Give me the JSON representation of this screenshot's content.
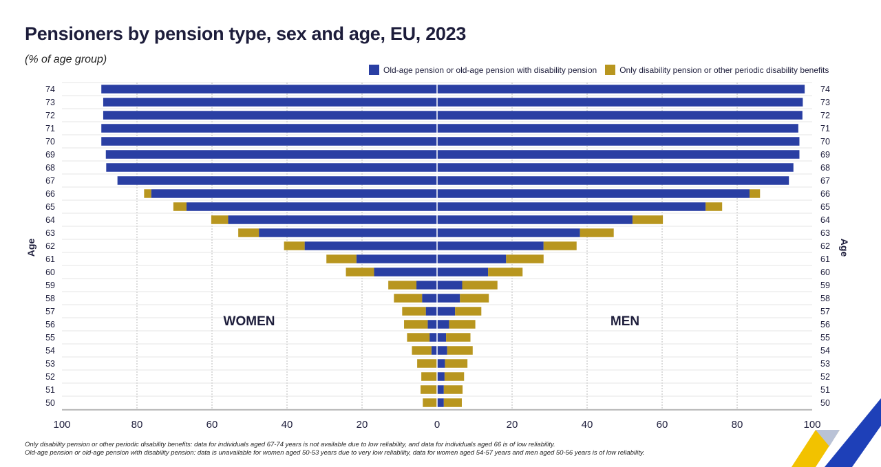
{
  "chart_data": {
    "type": "bar",
    "orientation": "horizontal-population-pyramid",
    "title": "Pensioners by pension type, sex and age, EU, 2023",
    "subtitle": "(% of age group)",
    "ylabel": "Age",
    "xlim": [
      0,
      100
    ],
    "x_ticks": [
      "100",
      "80",
      "60",
      "40",
      "20",
      "0",
      "20",
      "40",
      "60",
      "80",
      "100"
    ],
    "left_label": "WOMEN",
    "right_label": "MEN",
    "categories": [
      "74",
      "73",
      "72",
      "71",
      "70",
      "69",
      "68",
      "67",
      "66",
      "65",
      "64",
      "63",
      "62",
      "61",
      "60",
      "59",
      "58",
      "57",
      "56",
      "55",
      "54",
      "53",
      "52",
      "51",
      "50"
    ],
    "legend": [
      {
        "name": "Old-age pension or old-age pension with disability pension",
        "color": "#2a3fa3"
      },
      {
        "name": "Only disability pension or other periodic disability benefits",
        "color": "#b8961f"
      }
    ],
    "series": [
      {
        "name": "Women - Old-age pension or old-age pension with disability pension",
        "values": [
          89.5,
          89,
          89,
          89.5,
          89.5,
          88.3,
          88.2,
          85.2,
          76.2,
          66.8,
          55.7,
          47.5,
          35.3,
          21.5,
          16.8,
          5.5,
          4,
          3,
          2.5,
          2,
          1.5,
          0,
          0,
          0,
          0
        ]
      },
      {
        "name": "Women - Only disability pension or other periodic disability benefits",
        "values": [
          0,
          0,
          0,
          0,
          0,
          0,
          0,
          0,
          1.9,
          3.5,
          4.5,
          5.5,
          5.5,
          8,
          7.5,
          7.5,
          7.5,
          6.3,
          6.3,
          6,
          5.2,
          5.3,
          4.2,
          4.4,
          3.8
        ]
      },
      {
        "name": "Men - Old-age pension or old-age pension with disability pension",
        "values": [
          98,
          97.5,
          97.4,
          96.3,
          96.6,
          96.6,
          95,
          93.8,
          83.3,
          71.6,
          52.1,
          38.1,
          28.4,
          18.4,
          13.6,
          6.7,
          6.1,
          4.8,
          3.2,
          2.4,
          2.7,
          2.1,
          2,
          1.8,
          1.8
        ]
      },
      {
        "name": "Men - Only disability pension or other periodic disability benefits",
        "values": [
          0,
          0,
          0,
          0,
          0,
          0,
          0,
          0,
          2.8,
          4.4,
          8.1,
          9,
          8.8,
          10,
          9.2,
          9.4,
          7.7,
          7,
          7,
          6.5,
          6.8,
          6,
          5.2,
          5,
          4.8
        ]
      }
    ]
  },
  "footnotes": [
    "Only disability pension or other periodic disability benefits: data for individuals aged 67-74 years is not available due to low reliability, and data for individuals aged 66 is of low reliability.",
    "Old-age pension or old-age pension with disability pension: data is unavailable for women aged 50-53 years due to very low reliability, data for women aged 54-57 years and men aged 50-56 years is of low reliability."
  ],
  "colors": {
    "oldage": "#2a3fa3",
    "disability": "#b8961f",
    "text": "#1d1d3b",
    "grid": "#b9b9b9"
  }
}
